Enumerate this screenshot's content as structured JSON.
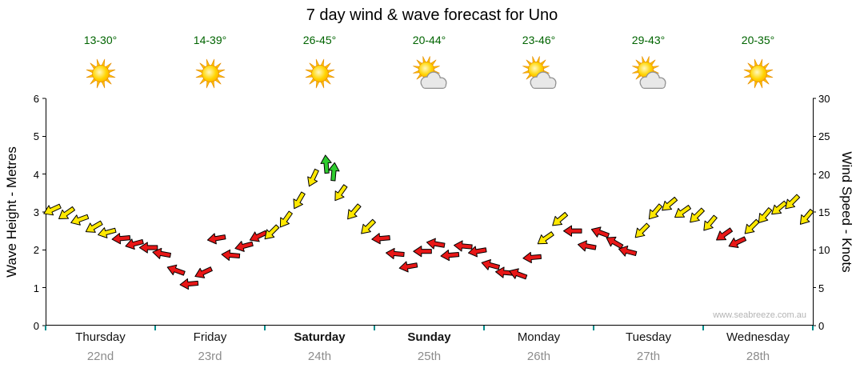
{
  "chart_data": {
    "type": "scatter",
    "subtype": "wind-arrow-forecast",
    "title": "7 day wind & wave forecast for Uno",
    "watermark": "www.seabreeze.com.au",
    "x_unit": "days from start of Thursday; span 0-7 days",
    "note": "Arrow vertical position read against both axes: wind speed in knots (right), wave height metres = knots/5 (left). Arrow colour indicates wind category, arrow rotation indicates wind direction.",
    "y_left": {
      "label": "Wave Height - Metres",
      "min": 0,
      "max": 6,
      "ticks": [
        0,
        1,
        2,
        3,
        4,
        5,
        6
      ]
    },
    "y_right": {
      "label": "Wind Speed - Knots",
      "min": 0,
      "max": 30,
      "ticks": [
        0,
        5,
        10,
        15,
        20,
        25,
        30
      ]
    },
    "days": [
      {
        "name": "Thursday",
        "date": "22nd",
        "temp": "13-30°",
        "weather": "sunny",
        "bold": false
      },
      {
        "name": "Friday",
        "date": "23rd",
        "temp": "14-39°",
        "weather": "sunny",
        "bold": false
      },
      {
        "name": "Saturday",
        "date": "24th",
        "temp": "26-45°",
        "weather": "sunny",
        "bold": true
      },
      {
        "name": "Sunday",
        "date": "25th",
        "temp": "20-44°",
        "weather": "partly-cloudy",
        "bold": true
      },
      {
        "name": "Monday",
        "date": "26th",
        "temp": "23-46°",
        "weather": "partly-cloudy",
        "bold": false
      },
      {
        "name": "Tuesday",
        "date": "27th",
        "temp": "29-43°",
        "weather": "partly-cloudy",
        "bold": false
      },
      {
        "name": "Wednesday",
        "date": "28th",
        "temp": "20-35°",
        "weather": "sunny",
        "bold": false
      }
    ],
    "colors": {
      "yellow": "#ffe800",
      "red": "#e81717",
      "green": "#2ecc2e",
      "outline": "#000000",
      "axis": "#000000",
      "day_tick": "#008b8b",
      "temp_text": "#006400",
      "date_text": "#8c8c8c",
      "watermark": "#b4b4b4"
    },
    "points": [
      {
        "x": 0.06,
        "kt": 15.3,
        "c": "yellow",
        "dir": 205
      },
      {
        "x": 0.19,
        "kt": 14.8,
        "c": "yellow",
        "dir": 215
      },
      {
        "x": 0.31,
        "kt": 14.0,
        "c": "yellow",
        "dir": 200
      },
      {
        "x": 0.44,
        "kt": 13.0,
        "c": "yellow",
        "dir": 210
      },
      {
        "x": 0.56,
        "kt": 12.3,
        "c": "yellow",
        "dir": 195
      },
      {
        "x": 0.69,
        "kt": 11.5,
        "c": "red",
        "dir": 185
      },
      {
        "x": 0.81,
        "kt": 10.8,
        "c": "red",
        "dir": 195
      },
      {
        "x": 0.94,
        "kt": 10.3,
        "c": "red",
        "dir": 180
      },
      {
        "x": 1.06,
        "kt": 9.5,
        "c": "red",
        "dir": 170
      },
      {
        "x": 1.19,
        "kt": 7.3,
        "c": "red",
        "dir": 160
      },
      {
        "x": 1.31,
        "kt": 5.5,
        "c": "red",
        "dir": 185
      },
      {
        "x": 1.44,
        "kt": 7.0,
        "c": "red",
        "dir": 205
      },
      {
        "x": 1.56,
        "kt": 11.5,
        "c": "red",
        "dir": 190
      },
      {
        "x": 1.69,
        "kt": 9.3,
        "c": "red",
        "dir": 175
      },
      {
        "x": 1.81,
        "kt": 10.5,
        "c": "red",
        "dir": 195
      },
      {
        "x": 1.94,
        "kt": 11.8,
        "c": "red",
        "dir": 205
      },
      {
        "x": 2.06,
        "kt": 12.3,
        "c": "yellow",
        "dir": 225
      },
      {
        "x": 2.19,
        "kt": 14.0,
        "c": "yellow",
        "dir": 235
      },
      {
        "x": 2.31,
        "kt": 16.5,
        "c": "yellow",
        "dir": 240
      },
      {
        "x": 2.44,
        "kt": 19.5,
        "c": "yellow",
        "dir": 245
      },
      {
        "x": 2.56,
        "kt": 21.3,
        "c": "green",
        "dir": 95
      },
      {
        "x": 2.63,
        "kt": 20.3,
        "c": "green",
        "dir": 85
      },
      {
        "x": 2.69,
        "kt": 17.5,
        "c": "yellow",
        "dir": 235
      },
      {
        "x": 2.81,
        "kt": 15.0,
        "c": "yellow",
        "dir": 230
      },
      {
        "x": 2.94,
        "kt": 13.0,
        "c": "yellow",
        "dir": 225
      },
      {
        "x": 3.06,
        "kt": 11.5,
        "c": "red",
        "dir": 185
      },
      {
        "x": 3.19,
        "kt": 9.5,
        "c": "red",
        "dir": 175
      },
      {
        "x": 3.31,
        "kt": 7.8,
        "c": "red",
        "dir": 190
      },
      {
        "x": 3.44,
        "kt": 9.8,
        "c": "red",
        "dir": 180
      },
      {
        "x": 3.56,
        "kt": 10.8,
        "c": "red",
        "dir": 170
      },
      {
        "x": 3.69,
        "kt": 9.3,
        "c": "red",
        "dir": 185
      },
      {
        "x": 3.81,
        "kt": 10.5,
        "c": "red",
        "dir": 175
      },
      {
        "x": 3.94,
        "kt": 9.8,
        "c": "red",
        "dir": 190
      },
      {
        "x": 4.06,
        "kt": 8.0,
        "c": "red",
        "dir": 165
      },
      {
        "x": 4.19,
        "kt": 7.0,
        "c": "red",
        "dir": 175
      },
      {
        "x": 4.31,
        "kt": 6.8,
        "c": "red",
        "dir": 160
      },
      {
        "x": 4.44,
        "kt": 9.0,
        "c": "red",
        "dir": 185
      },
      {
        "x": 4.56,
        "kt": 11.5,
        "c": "yellow",
        "dir": 215
      },
      {
        "x": 4.69,
        "kt": 14.0,
        "c": "yellow",
        "dir": 220
      },
      {
        "x": 4.81,
        "kt": 12.5,
        "c": "red",
        "dir": 180
      },
      {
        "x": 4.94,
        "kt": 10.5,
        "c": "red",
        "dir": 170
      },
      {
        "x": 5.06,
        "kt": 12.3,
        "c": "red",
        "dir": 160
      },
      {
        "x": 5.19,
        "kt": 11.0,
        "c": "red",
        "dir": 150
      },
      {
        "x": 5.31,
        "kt": 9.8,
        "c": "red",
        "dir": 165
      },
      {
        "x": 5.44,
        "kt": 12.5,
        "c": "yellow",
        "dir": 225
      },
      {
        "x": 5.56,
        "kt": 15.0,
        "c": "yellow",
        "dir": 230
      },
      {
        "x": 5.69,
        "kt": 16.0,
        "c": "yellow",
        "dir": 220
      },
      {
        "x": 5.81,
        "kt": 15.0,
        "c": "yellow",
        "dir": 215
      },
      {
        "x": 5.94,
        "kt": 14.5,
        "c": "yellow",
        "dir": 225
      },
      {
        "x": 6.06,
        "kt": 13.5,
        "c": "yellow",
        "dir": 230
      },
      {
        "x": 6.19,
        "kt": 12.0,
        "c": "red",
        "dir": 215
      },
      {
        "x": 6.31,
        "kt": 11.0,
        "c": "red",
        "dir": 205
      },
      {
        "x": 6.44,
        "kt": 13.0,
        "c": "yellow",
        "dir": 225
      },
      {
        "x": 6.56,
        "kt": 14.5,
        "c": "yellow",
        "dir": 230
      },
      {
        "x": 6.69,
        "kt": 15.5,
        "c": "yellow",
        "dir": 220
      },
      {
        "x": 6.81,
        "kt": 16.3,
        "c": "yellow",
        "dir": 225
      },
      {
        "x": 6.94,
        "kt": 14.3,
        "c": "yellow",
        "dir": 230
      }
    ]
  }
}
